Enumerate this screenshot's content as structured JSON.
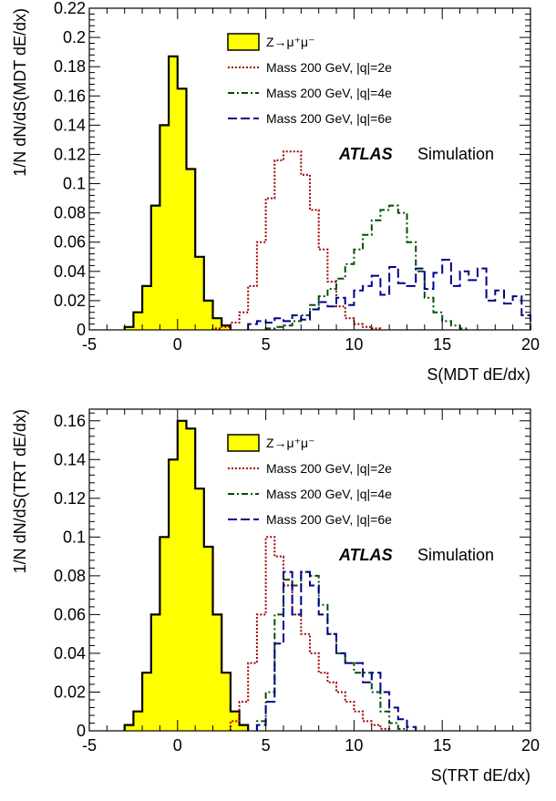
{
  "chart_data": [
    {
      "type": "histogram",
      "xlabel": "S(MDT dE/dx)",
      "ylabel": "1/N dN/dS(MDT dE/dx)",
      "xlim": [
        -5,
        20
      ],
      "ylim": [
        0,
        0.22
      ],
      "xticks": [
        -5,
        0,
        5,
        10,
        15,
        20
      ],
      "xtick_labels": [
        "-5",
        "0",
        "5",
        "10",
        "15",
        "20"
      ],
      "yticks": [
        0,
        0.02,
        0.04,
        0.06,
        0.08,
        0.1,
        0.12,
        0.14,
        0.16,
        0.18,
        0.2,
        0.22
      ],
      "ytick_labels": [
        "0",
        "0.02",
        "0.04",
        "0.06",
        "0.08",
        "0.1",
        "0.12",
        "0.14",
        "0.16",
        "0.18",
        "0.2",
        "0.22"
      ],
      "annotation_bold": "ATLAS",
      "annotation": "Simulation",
      "legend_placement": "top-center",
      "bin_width": 0.5,
      "series": [
        {
          "name": "Z→μ⁺μ⁻",
          "style": "filled",
          "color": "#ffff00",
          "edge": "#000000",
          "bins_start": -3,
          "values": [
            0.002,
            0.012,
            0.03,
            0.085,
            0.14,
            0.187,
            0.165,
            0.11,
            0.05,
            0.02,
            0.008,
            0.003
          ]
        },
        {
          "name": "Mass 200 GeV, |q|=2e",
          "style": "dotted",
          "color": "#a00000",
          "bins_start": 2,
          "values": [
            0.001,
            0.002,
            0.005,
            0.012,
            0.03,
            0.06,
            0.09,
            0.116,
            0.122,
            0.122,
            0.106,
            0.082,
            0.055,
            0.033,
            0.016,
            0.008,
            0.004,
            0.002,
            0.001
          ]
        },
        {
          "name": "Mass 200 GeV, |q|=4e",
          "style": "dashdot",
          "color": "#005000",
          "bins_start": 5,
          "values": [
            0.001,
            0.002,
            0.003,
            0.006,
            0.01,
            0.017,
            0.023,
            0.028,
            0.035,
            0.045,
            0.055,
            0.065,
            0.075,
            0.082,
            0.085,
            0.08,
            0.06,
            0.04,
            0.022,
            0.012,
            0.006,
            0.003,
            0.001
          ]
        },
        {
          "name": "Mass 200 GeV, |q|=6e",
          "style": "longdash",
          "color": "#00008b",
          "bins_start": 4,
          "values": [
            0.004,
            0.006,
            0.005,
            0.008,
            0.006,
            0.01,
            0.007,
            0.014,
            0.019,
            0.016,
            0.022,
            0.017,
            0.027,
            0.03,
            0.037,
            0.024,
            0.043,
            0.032,
            0.03,
            0.042,
            0.028,
            0.039,
            0.048,
            0.03,
            0.04,
            0.034,
            0.042,
            0.02,
            0.027,
            0.018,
            0.023,
            0.01
          ]
        }
      ]
    },
    {
      "type": "histogram",
      "xlabel": "S(TRT dE/dx)",
      "ylabel": "1/N dN/dS(TRT dE/dx)",
      "xlim": [
        -5,
        20
      ],
      "ylim": [
        0,
        0.166
      ],
      "xticks": [
        -5,
        0,
        5,
        10,
        15,
        20
      ],
      "xtick_labels": [
        "-5",
        "0",
        "5",
        "10",
        "15",
        "20"
      ],
      "yticks": [
        0,
        0.02,
        0.04,
        0.06,
        0.08,
        0.1,
        0.12,
        0.14,
        0.16
      ],
      "ytick_labels": [
        "0",
        "0.02",
        "0.04",
        "0.06",
        "0.08",
        "0.1",
        "0.12",
        "0.14",
        "0.16"
      ],
      "annotation_bold": "ATLAS",
      "annotation": "Simulation",
      "legend_placement": "top-center",
      "bin_width": 0.5,
      "series": [
        {
          "name": "Z→μ⁺μ⁻",
          "style": "filled",
          "color": "#ffff00",
          "edge": "#000000",
          "bins_start": -3,
          "values": [
            0.003,
            0.01,
            0.03,
            0.06,
            0.1,
            0.14,
            0.16,
            0.156,
            0.125,
            0.095,
            0.06,
            0.03,
            0.01,
            0.003
          ]
        },
        {
          "name": "Mass 200 GeV, |q|=2e",
          "style": "dotted",
          "color": "#a00000",
          "bins_start": 3,
          "values": [
            0.005,
            0.015,
            0.035,
            0.06,
            0.1,
            0.09,
            0.075,
            0.06,
            0.05,
            0.04,
            0.03,
            0.025,
            0.02,
            0.015,
            0.01,
            0.005,
            0.003,
            0.001
          ]
        },
        {
          "name": "Mass 200 GeV, |q|=4e",
          "style": "dashdot",
          "color": "#005000",
          "bins_start": 4.5,
          "values": [
            0.005,
            0.02,
            0.06,
            0.078,
            0.075,
            0.082,
            0.08,
            0.065,
            0.05,
            0.04,
            0.035,
            0.03,
            0.03,
            0.02,
            0.01,
            0.004,
            0.001
          ]
        },
        {
          "name": "Mass 200 GeV, |q|=6e",
          "style": "longdash",
          "color": "#00008b",
          "bins_start": 4.5,
          "values": [
            0.003,
            0.015,
            0.045,
            0.082,
            0.06,
            0.082,
            0.075,
            0.06,
            0.05,
            0.04,
            0.035,
            0.035,
            0.025,
            0.03,
            0.02,
            0.012,
            0.006,
            0.002
          ]
        }
      ]
    }
  ]
}
